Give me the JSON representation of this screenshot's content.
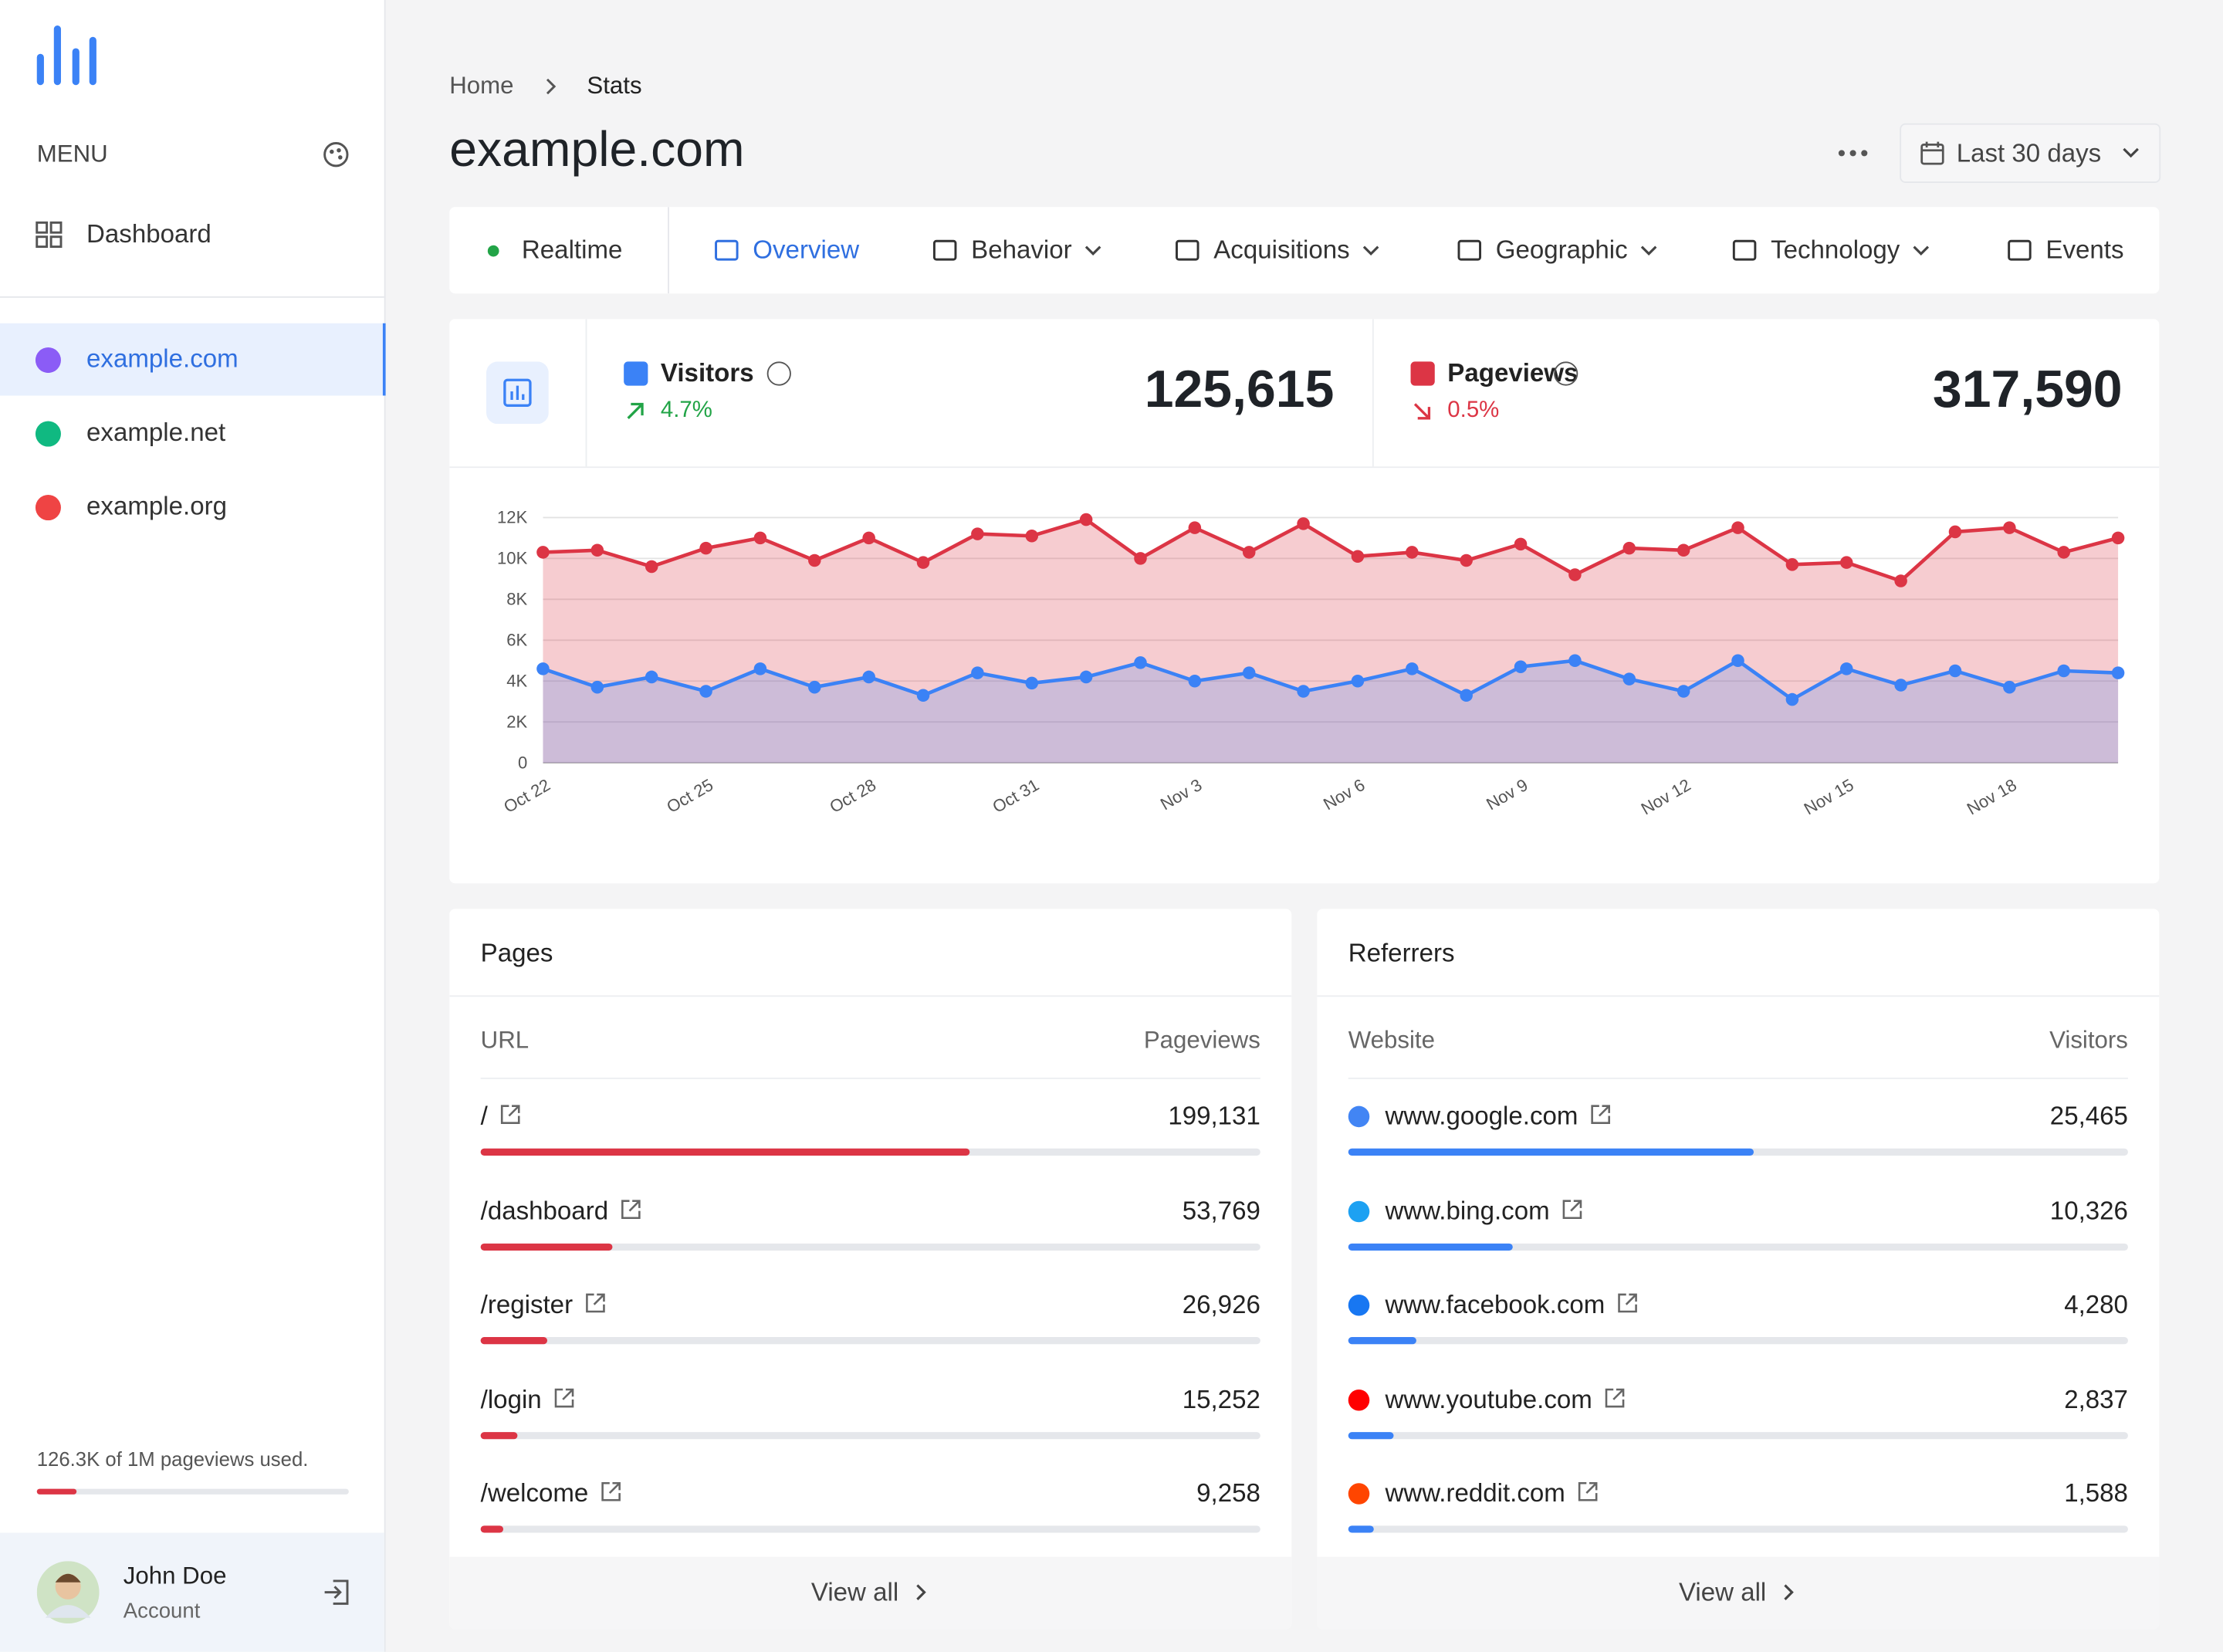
{
  "sidebar": {
    "menu_label": "MENU",
    "nav": [
      "Dashboard"
    ],
    "sites": [
      "example.com",
      "example.net",
      "example.org"
    ],
    "usage": {
      "text": "126.3K of 1M pageviews used.",
      "used": 126300,
      "limit": 1000000
    },
    "user": {
      "name": "John Doe",
      "role": "Account"
    }
  },
  "header": {
    "breadcrumb": [
      "Home",
      "Stats"
    ],
    "title": "example.com",
    "date_range": "Last 30 days"
  },
  "tabs": [
    "Realtime",
    "Overview",
    "Behavior",
    "Acquisitions",
    "Geographic",
    "Technology",
    "Events"
  ],
  "stats": [
    {
      "name": "Visitors",
      "change": "4.7%",
      "total": "125,615",
      "color": "#3b82f6"
    },
    {
      "name": "Pageviews",
      "change": "0.5%",
      "total": "317,590",
      "color": "#dc3545"
    }
  ],
  "chart_data": {
    "type": "area",
    "categories": [
      "Oct 22",
      null,
      null,
      "Oct 25",
      null,
      null,
      "Oct 28",
      null,
      null,
      "Oct 31",
      null,
      null,
      "Nov 3",
      null,
      null,
      "Nov 6",
      null,
      null,
      "Nov 9",
      null,
      null,
      "Nov 12",
      null,
      null,
      "Nov 15",
      null,
      null,
      "Nov 18",
      null,
      null
    ],
    "series": [
      {
        "color": "#dc3545",
        "values": [
          10300,
          10400,
          9600,
          10500,
          11000,
          9900,
          11000,
          9800,
          11200,
          11100,
          11900,
          10000,
          11500,
          10300,
          11700,
          10100,
          10300,
          9900,
          10700,
          9200,
          10500,
          10400,
          11500,
          9700,
          9800,
          8900,
          11300,
          11500,
          10300,
          11000
        ]
      },
      {
        "color": "#3b82f6",
        "values": [
          4600,
          3700,
          4200,
          3500,
          4600,
          3700,
          4200,
          3300,
          4400,
          3900,
          4200,
          4900,
          4000,
          4400,
          3500,
          4000,
          4600,
          3300,
          4700,
          5000,
          4100,
          3500,
          5000,
          3100,
          4600,
          3800,
          4500,
          3700,
          4500,
          4400
        ]
      }
    ],
    "ylim": [
      0,
      12000
    ],
    "yticks": [
      0,
      {
        "value": 2000,
        "label": "2K"
      },
      {
        "value": 4000,
        "label": "4K"
      },
      {
        "value": 6000,
        "label": "6K"
      },
      {
        "value": 8000,
        "label": "8K"
      },
      {
        "value": 10000,
        "label": "10K"
      },
      {
        "value": 12000,
        "label": "12K"
      }
    ],
    "grid": true
  },
  "pages": {
    "title": "Pages",
    "columns": [
      "URL",
      "Pageviews"
    ],
    "rows": [
      [
        "/",
        "199,131"
      ],
      [
        "/dashboard",
        "53,769"
      ],
      [
        "/register",
        "26,926"
      ],
      [
        "/login",
        "15,252"
      ],
      [
        "/welcome",
        "9,258"
      ]
    ],
    "footer": "View all"
  },
  "referrers": {
    "title": "Referrers",
    "columns": [
      "Website",
      "Visitors"
    ],
    "rows": [
      [
        "www.google.com",
        "25,465"
      ],
      [
        "www.bing.com",
        "10,326"
      ],
      [
        "www.facebook.com",
        "4,280"
      ],
      [
        "www.youtube.com",
        "2,837"
      ],
      [
        "www.reddit.com",
        "1,588"
      ]
    ],
    "footer": "View all"
  }
}
